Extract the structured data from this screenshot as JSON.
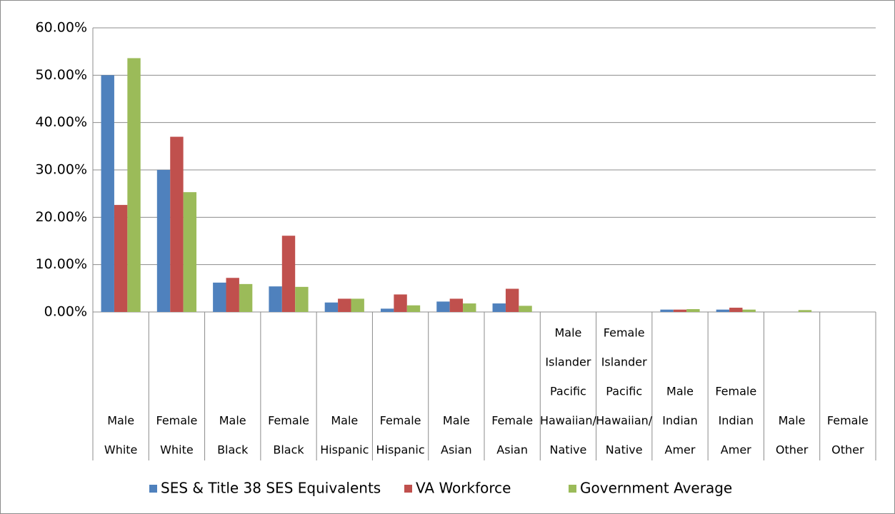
{
  "chart_data": {
    "type": "bar",
    "categories": [
      [
        "Male",
        "White"
      ],
      [
        "Female",
        "White"
      ],
      [
        "Male",
        "Black"
      ],
      [
        "Female",
        "Black"
      ],
      [
        "Male",
        "Hispanic"
      ],
      [
        "Female",
        "Hispanic"
      ],
      [
        "Male",
        "Asian"
      ],
      [
        "Female",
        "Asian"
      ],
      [
        "Male",
        "Islander",
        "Pacific",
        "Hawaiian/",
        "Native"
      ],
      [
        "Female",
        "Islander",
        "Pacific",
        "Hawaiian/",
        "Native"
      ],
      [
        "Male",
        "Indian",
        "Amer"
      ],
      [
        "Female",
        "Indian",
        "Amer"
      ],
      [
        "Male",
        "Other"
      ],
      [
        "Female",
        "Other"
      ]
    ],
    "series": [
      {
        "name": "SES & Title 38 SES Equivalents",
        "color": "#4f81bd",
        "values": [
          50.0,
          30.0,
          6.2,
          5.4,
          2.0,
          0.7,
          2.2,
          1.8,
          0,
          0,
          0.5,
          0.5,
          0,
          0
        ]
      },
      {
        "name": "VA Workforce",
        "color": "#c0504d",
        "values": [
          22.6,
          37.0,
          7.2,
          16.1,
          2.8,
          3.7,
          2.8,
          4.9,
          0,
          0,
          0.5,
          0.9,
          0,
          0
        ]
      },
      {
        "name": "Government Average",
        "color": "#9bbb59",
        "values": [
          53.6,
          25.3,
          5.9,
          5.3,
          2.8,
          1.4,
          1.8,
          1.3,
          0,
          0,
          0.6,
          0.5,
          0.4,
          0
        ]
      }
    ],
    "ylim": [
      0,
      60
    ],
    "yticks": [
      {
        "value": 0,
        "label": "0.00%"
      },
      {
        "value": 10,
        "label": "10.00%"
      },
      {
        "value": 20,
        "label": "20.00%"
      },
      {
        "value": 30,
        "label": "30.00%"
      },
      {
        "value": 40,
        "label": "40.00%"
      },
      {
        "value": 50,
        "label": "50.00%"
      },
      {
        "value": 60,
        "label": "60.00%"
      }
    ],
    "grid": true,
    "legend": "bottom"
  }
}
